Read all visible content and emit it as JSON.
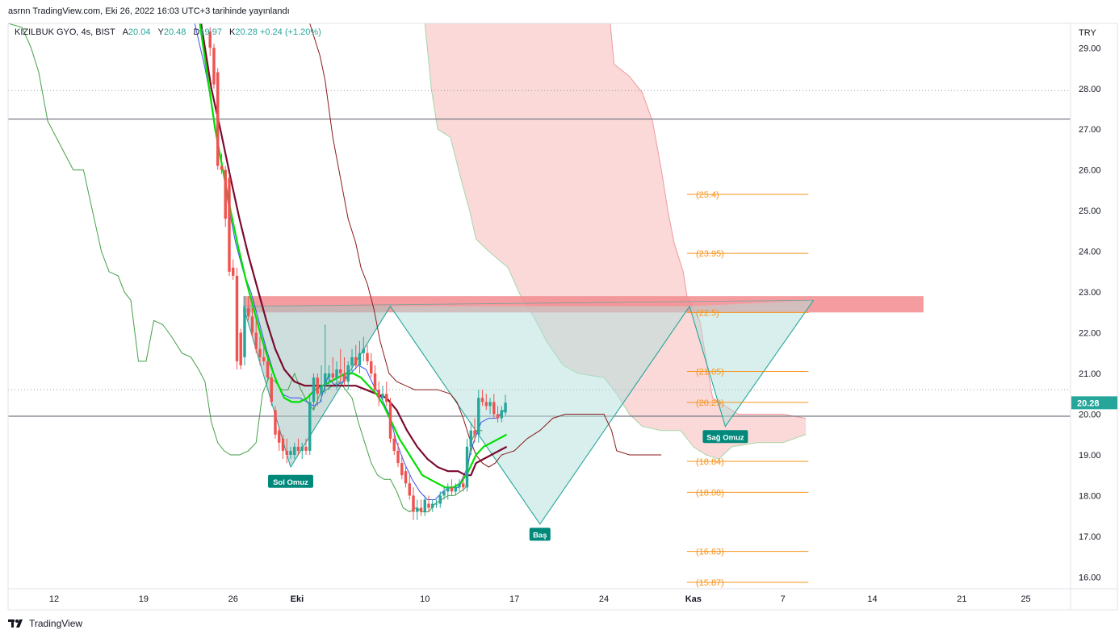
{
  "header": {
    "text": "asrnn TradingView.com, Eki 26, 2022 16:03 UTC+3 tarihinde yayınlandı"
  },
  "legend": {
    "symbol": "KIZILBUK GYO, 4s, BIST",
    "open_label": "A",
    "open": "20.04",
    "high_label": "Y",
    "high": "20.48",
    "low_label": "D",
    "low": "19.97",
    "close_label": "K",
    "close": "20.28",
    "change": "+0.24 (+1.20%)"
  },
  "footer": {
    "brand": "TradingView",
    "logo_icon": "tradingview-logo-icon"
  },
  "colors": {
    "up": "#26a69a",
    "down": "#ef5350",
    "fib": "#f7931a",
    "cloud_red": "#f8c9c7",
    "cloud_green": "#c8e6c9",
    "resistance": "#f28b8f",
    "pattern_fill": "#b2dfdb",
    "ema_green": "#00e000",
    "ema_maroon": "#7b0a2e",
    "blue": "#3f51f0",
    "brown": "#8b1a1a"
  },
  "chart_data": {
    "type": "candlestick",
    "title": "",
    "currency": "TRY",
    "y_axis": {
      "ticks": [
        16.0,
        17.0,
        18.0,
        19.0,
        20.0,
        21.0,
        22.0,
        23.0,
        24.0,
        25.0,
        26.0,
        27.0,
        28.0,
        29.0
      ],
      "range": [
        15.75,
        29.6
      ]
    },
    "x_axis": {
      "labels": [
        "12",
        "19",
        "26",
        "Eki",
        "10",
        "17",
        "24",
        "Kas",
        "7",
        "14",
        "21",
        "25"
      ],
      "label_days": [
        12,
        19,
        26,
        31,
        41,
        48,
        55,
        62,
        69,
        76,
        83,
        88
      ],
      "range_days": [
        8.4,
        91.5
      ]
    },
    "last_price": "20.28",
    "horizontal_lines": [
      27.25,
      19.95
    ],
    "dotted_lines": [
      27.95,
      20.6
    ],
    "resistance_zone": [
      22.5,
      22.9
    ],
    "fib_levels": [
      {
        "label": "(25.4)",
        "value": 25.4
      },
      {
        "label": "(23.95)",
        "value": 23.95
      },
      {
        "label": "(22.5)",
        "value": 22.5
      },
      {
        "label": "(21.05)",
        "value": 21.05
      },
      {
        "label": "(20.29)",
        "value": 20.29
      },
      {
        "label": "(18.84)",
        "value": 18.84
      },
      {
        "label": "(18.08)",
        "value": 18.08
      },
      {
        "label": "(16.63)",
        "value": 16.63
      },
      {
        "label": "(15.87)",
        "value": 15.87
      }
    ],
    "pattern_labels": [
      {
        "label": "Sol Omuz",
        "day": 30.5,
        "value": 18.35
      },
      {
        "label": "Baş",
        "day": 50.0,
        "value": 17.05
      },
      {
        "label": "Sağ Omuz",
        "day": 64.5,
        "value": 19.45
      }
    ],
    "head_shoulders_path": [
      [
        30.5,
        18.7
      ],
      [
        38.3,
        22.65
      ],
      [
        50.0,
        17.3
      ],
      [
        61.7,
        22.65
      ],
      [
        64.5,
        19.7
      ],
      [
        71.4,
        22.8
      ]
    ],
    "candles": [
      {
        "d": 24.2,
        "o": 29.4,
        "h": 29.5,
        "l": 28.8,
        "c": 29.0
      },
      {
        "d": 24.5,
        "o": 29.0,
        "h": 29.1,
        "l": 28.0,
        "c": 28.1
      },
      {
        "d": 24.8,
        "o": 28.4,
        "h": 28.5,
        "l": 26.0,
        "c": 26.1
      },
      {
        "d": 25.1,
        "o": 26.1,
        "h": 26.4,
        "l": 25.9,
        "c": 26.0
      },
      {
        "d": 25.4,
        "o": 26.0,
        "h": 26.1,
        "l": 24.6,
        "c": 24.8
      },
      {
        "d": 25.7,
        "o": 25.8,
        "h": 25.9,
        "l": 23.4,
        "c": 23.5
      },
      {
        "d": 26.0,
        "o": 23.6,
        "h": 23.8,
        "l": 23.3,
        "c": 23.4
      },
      {
        "d": 26.3,
        "o": 23.4,
        "h": 23.6,
        "l": 21.1,
        "c": 21.3
      },
      {
        "d": 26.6,
        "o": 22.0,
        "h": 22.1,
        "l": 21.1,
        "c": 21.2
      },
      {
        "d": 26.9,
        "o": 21.4,
        "h": 22.9,
        "l": 21.2,
        "c": 22.6
      },
      {
        "d": 27.2,
        "o": 22.6,
        "h": 22.9,
        "l": 22.3,
        "c": 22.4
      },
      {
        "d": 27.5,
        "o": 22.4,
        "h": 22.6,
        "l": 21.9,
        "c": 22.0
      },
      {
        "d": 27.8,
        "o": 22.0,
        "h": 22.3,
        "l": 21.5,
        "c": 21.6
      },
      {
        "d": 28.1,
        "o": 21.6,
        "h": 21.9,
        "l": 21.2,
        "c": 21.4
      },
      {
        "d": 28.4,
        "o": 21.4,
        "h": 21.7,
        "l": 21.2,
        "c": 21.3
      },
      {
        "d": 28.7,
        "o": 21.3,
        "h": 21.5,
        "l": 20.8,
        "c": 20.9
      },
      {
        "d": 29.0,
        "o": 20.9,
        "h": 21.0,
        "l": 20.2,
        "c": 20.3
      },
      {
        "d": 29.3,
        "o": 20.1,
        "h": 20.2,
        "l": 19.4,
        "c": 19.5
      },
      {
        "d": 29.6,
        "o": 19.6,
        "h": 19.7,
        "l": 19.1,
        "c": 19.3
      },
      {
        "d": 29.9,
        "o": 19.4,
        "h": 19.5,
        "l": 18.9,
        "c": 19.1
      },
      {
        "d": 30.2,
        "o": 19.1,
        "h": 19.4,
        "l": 18.8,
        "c": 19.0
      },
      {
        "d": 30.5,
        "o": 19.0,
        "h": 19.2,
        "l": 18.9,
        "c": 19.1
      },
      {
        "d": 30.8,
        "o": 19.0,
        "h": 19.3,
        "l": 18.9,
        "c": 19.2
      },
      {
        "d": 31.1,
        "o": 19.2,
        "h": 19.4,
        "l": 19.0,
        "c": 19.1
      },
      {
        "d": 31.4,
        "o": 19.1,
        "h": 19.3,
        "l": 18.9,
        "c": 19.2
      },
      {
        "d": 31.7,
        "o": 19.2,
        "h": 19.4,
        "l": 19.0,
        "c": 19.1
      },
      {
        "d": 32.0,
        "o": 19.1,
        "h": 20.5,
        "l": 19.0,
        "c": 20.3
      },
      {
        "d": 32.3,
        "o": 20.3,
        "h": 21.0,
        "l": 20.1,
        "c": 20.9
      },
      {
        "d": 32.6,
        "o": 20.9,
        "h": 21.0,
        "l": 20.2,
        "c": 20.5
      },
      {
        "d": 32.9,
        "o": 20.5,
        "h": 21.2,
        "l": 20.3,
        "c": 20.7
      },
      {
        "d": 33.2,
        "o": 20.7,
        "h": 22.2,
        "l": 20.5,
        "c": 21.0
      },
      {
        "d": 33.5,
        "o": 20.9,
        "h": 21.2,
        "l": 20.6,
        "c": 21.0
      },
      {
        "d": 33.8,
        "o": 21.0,
        "h": 21.4,
        "l": 20.8,
        "c": 20.9
      },
      {
        "d": 34.1,
        "o": 20.9,
        "h": 21.3,
        "l": 20.6,
        "c": 21.1
      },
      {
        "d": 34.4,
        "o": 21.1,
        "h": 21.6,
        "l": 20.8,
        "c": 21.0
      },
      {
        "d": 34.7,
        "o": 21.0,
        "h": 21.4,
        "l": 20.7,
        "c": 20.8
      },
      {
        "d": 35.0,
        "o": 20.8,
        "h": 21.3,
        "l": 20.6,
        "c": 21.2
      },
      {
        "d": 35.3,
        "o": 21.2,
        "h": 21.6,
        "l": 21.0,
        "c": 21.4
      },
      {
        "d": 35.6,
        "o": 21.4,
        "h": 21.7,
        "l": 21.1,
        "c": 21.2
      },
      {
        "d": 35.9,
        "o": 21.2,
        "h": 21.8,
        "l": 21.0,
        "c": 21.5
      },
      {
        "d": 36.2,
        "o": 21.5,
        "h": 21.9,
        "l": 21.3,
        "c": 21.6
      },
      {
        "d": 36.5,
        "o": 21.5,
        "h": 21.7,
        "l": 21.2,
        "c": 21.3
      },
      {
        "d": 36.8,
        "o": 21.3,
        "h": 21.5,
        "l": 20.9,
        "c": 21.0
      },
      {
        "d": 37.1,
        "o": 21.0,
        "h": 21.2,
        "l": 20.5,
        "c": 20.6
      },
      {
        "d": 37.4,
        "o": 20.6,
        "h": 20.8,
        "l": 20.2,
        "c": 20.4
      },
      {
        "d": 37.7,
        "o": 20.4,
        "h": 20.7,
        "l": 20.3,
        "c": 20.5
      },
      {
        "d": 38.0,
        "o": 20.5,
        "h": 20.8,
        "l": 20.2,
        "c": 20.3
      },
      {
        "d": 38.3,
        "o": 20.3,
        "h": 20.4,
        "l": 19.3,
        "c": 19.4
      },
      {
        "d": 38.6,
        "o": 19.4,
        "h": 19.5,
        "l": 19.0,
        "c": 19.1
      },
      {
        "d": 38.9,
        "o": 19.1,
        "h": 19.3,
        "l": 18.7,
        "c": 18.8
      },
      {
        "d": 39.2,
        "o": 18.8,
        "h": 19.0,
        "l": 18.4,
        "c": 18.5
      },
      {
        "d": 39.5,
        "o": 18.6,
        "h": 18.7,
        "l": 18.2,
        "c": 18.3
      },
      {
        "d": 39.8,
        "o": 18.3,
        "h": 18.5,
        "l": 17.9,
        "c": 18.0
      },
      {
        "d": 40.1,
        "o": 18.0,
        "h": 18.2,
        "l": 17.4,
        "c": 17.6
      },
      {
        "d": 40.4,
        "o": 17.6,
        "h": 17.9,
        "l": 17.4,
        "c": 17.7
      },
      {
        "d": 40.7,
        "o": 17.7,
        "h": 17.9,
        "l": 17.5,
        "c": 17.6
      },
      {
        "d": 41.0,
        "o": 17.6,
        "h": 18.0,
        "l": 17.5,
        "c": 17.9
      },
      {
        "d": 41.3,
        "o": 17.8,
        "h": 18.0,
        "l": 17.6,
        "c": 17.7
      },
      {
        "d": 41.6,
        "o": 17.7,
        "h": 17.9,
        "l": 17.6,
        "c": 17.8
      },
      {
        "d": 41.9,
        "o": 17.8,
        "h": 17.9,
        "l": 17.7,
        "c": 17.8
      },
      {
        "d": 42.2,
        "o": 17.8,
        "h": 18.1,
        "l": 17.7,
        "c": 18.0
      },
      {
        "d": 42.5,
        "o": 18.0,
        "h": 18.2,
        "l": 17.9,
        "c": 18.1
      },
      {
        "d": 42.8,
        "o": 18.1,
        "h": 18.3,
        "l": 17.9,
        "c": 18.2
      },
      {
        "d": 43.1,
        "o": 18.2,
        "h": 18.4,
        "l": 18.0,
        "c": 18.1
      },
      {
        "d": 43.4,
        "o": 18.1,
        "h": 18.3,
        "l": 18.0,
        "c": 18.2
      },
      {
        "d": 43.7,
        "o": 18.2,
        "h": 18.4,
        "l": 18.1,
        "c": 18.3
      },
      {
        "d": 44.0,
        "o": 18.3,
        "h": 18.5,
        "l": 18.1,
        "c": 18.2
      },
      {
        "d": 44.3,
        "o": 18.2,
        "h": 19.4,
        "l": 18.1,
        "c": 19.2
      },
      {
        "d": 44.6,
        "o": 19.2,
        "h": 19.8,
        "l": 19.0,
        "c": 19.6
      },
      {
        "d": 44.9,
        "o": 19.6,
        "h": 19.9,
        "l": 19.3,
        "c": 19.5
      },
      {
        "d": 45.2,
        "o": 19.5,
        "h": 20.6,
        "l": 19.3,
        "c": 20.4
      },
      {
        "d": 45.5,
        "o": 20.4,
        "h": 20.6,
        "l": 20.2,
        "c": 20.3
      },
      {
        "d": 45.8,
        "o": 20.3,
        "h": 20.5,
        "l": 20.1,
        "c": 20.2
      },
      {
        "d": 46.1,
        "o": 20.2,
        "h": 20.4,
        "l": 20.0,
        "c": 20.3
      },
      {
        "d": 46.4,
        "o": 20.3,
        "h": 20.5,
        "l": 19.9,
        "c": 20.0
      },
      {
        "d": 46.7,
        "o": 20.0,
        "h": 20.2,
        "l": 19.8,
        "c": 19.9
      },
      {
        "d": 47.0,
        "o": 19.9,
        "h": 20.2,
        "l": 19.8,
        "c": 20.1
      },
      {
        "d": 47.3,
        "o": 20.04,
        "h": 20.48,
        "l": 19.97,
        "c": 20.28
      }
    ]
  }
}
